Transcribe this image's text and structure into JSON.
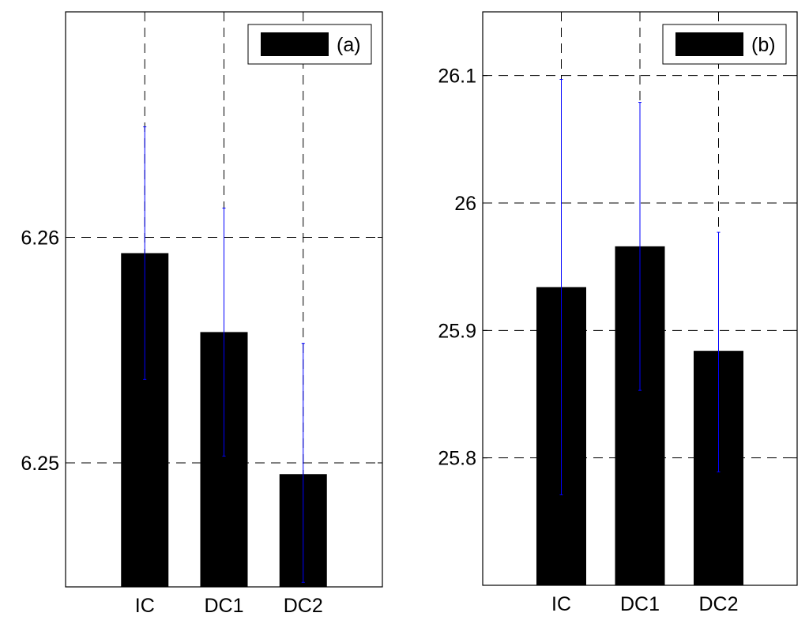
{
  "chart_data": [
    {
      "type": "bar",
      "categories": [
        "IC",
        "DC1",
        "DC2"
      ],
      "values": [
        6.2593,
        6.2558,
        6.2495
      ],
      "error_low": [
        6.2537,
        6.2503,
        6.2447
      ],
      "error_high": [
        6.2649,
        6.2613,
        6.2553
      ],
      "yticks": [
        6.25,
        6.26
      ],
      "ytick_labels": [
        "6.25",
        "6.26"
      ],
      "ylim": [
        6.2445,
        6.27
      ],
      "grid": true,
      "legend": {
        "label": "(a)",
        "position": "top-right"
      },
      "colors": {
        "bar": "#000000",
        "errorbar": "#0000ff"
      }
    },
    {
      "type": "bar",
      "categories": [
        "IC",
        "DC1",
        "DC2"
      ],
      "values": [
        25.934,
        25.966,
        25.884
      ],
      "error_low": [
        25.771,
        25.853,
        25.789
      ],
      "error_high": [
        26.097,
        26.079,
        25.977
      ],
      "yticks": [
        25.8,
        25.9,
        26.0,
        26.1
      ],
      "ytick_labels": [
        "25.8",
        "25.9",
        "26",
        "26.1"
      ],
      "ylim": [
        25.7,
        26.15
      ],
      "grid": true,
      "legend": {
        "label": "(b)",
        "position": "top-right"
      },
      "colors": {
        "bar": "#000000",
        "errorbar": "#0000ff"
      }
    }
  ]
}
